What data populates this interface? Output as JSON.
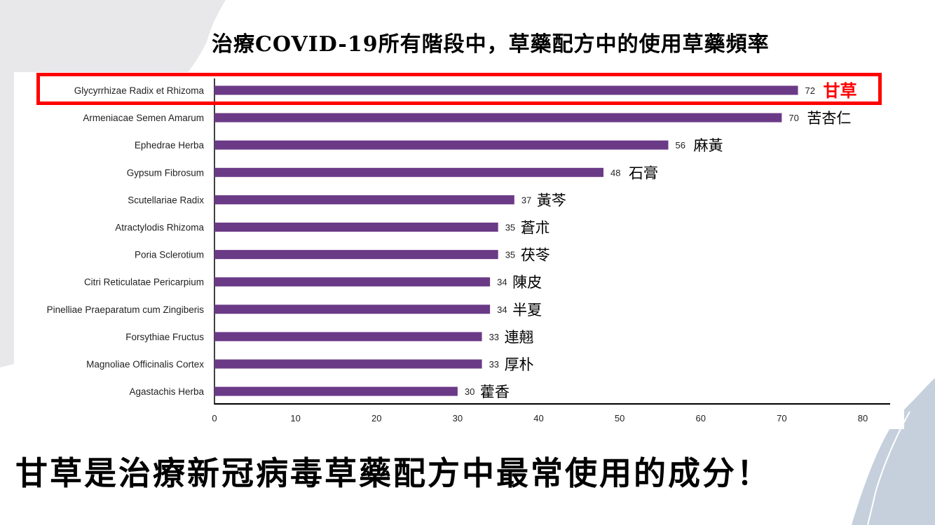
{
  "title": "治療COVID-19所有階段中，草藥配方中的使用草藥頻率",
  "conclusion": "甘草是治療新冠病毒草藥配方中最常使用的成分！",
  "colors": {
    "bar": "#6b3a87",
    "highlight": "#ff0000",
    "background_shape": "#e8e8ea",
    "corner_shape": "#c5d0dc"
  },
  "chart_data": {
    "type": "bar",
    "orientation": "horizontal",
    "categories": [
      "Glycyrrhizae Radix et Rhizoma",
      "Armeniacae Semen Amarum",
      "Ephedrae Herba",
      "Gypsum Fibrosum",
      "Scutellariae Radix",
      "Atractylodis Rhizoma",
      "Poria Sclerotium",
      "Citri Reticulatae Pericarpium",
      "Pinelliae Praeparatum cum Zingiberis",
      "Forsythiae Fructus",
      "Magnoliae Officinalis Cortex",
      "Agastachis Herba"
    ],
    "chinese_names": [
      "甘草",
      "苦杏仁",
      "麻黃",
      "石膏",
      "黃芩",
      "蒼朮",
      "茯苓",
      "陳皮",
      "半夏",
      "連翹",
      "厚朴",
      "藿香"
    ],
    "values": [
      72,
      70,
      56,
      48,
      37,
      35,
      35,
      34,
      34,
      33,
      33,
      30
    ],
    "highlighted_index": 0,
    "xlim": [
      0,
      80
    ],
    "xticks": [
      0,
      10,
      20,
      30,
      40,
      50,
      60,
      70,
      80
    ],
    "grid": false
  }
}
